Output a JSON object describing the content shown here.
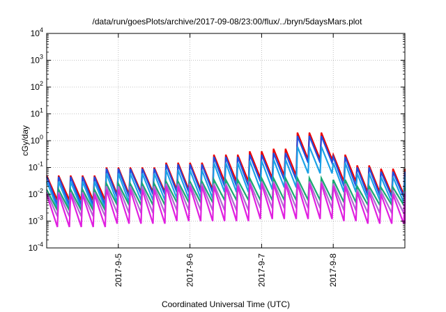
{
  "chart_data": {
    "type": "line",
    "title": "/data/run/goesPlots/archive/2017-09-08/23:00/flux/../bryn/5daysMars.plot",
    "xlabel": "Coordinated Universal Time (UTC)",
    "ylabel": "cGy/day",
    "x_range": [
      "2017-09-04T00:00",
      "2017-09-09T00:00"
    ],
    "x_ticks": [
      "2017-9-5",
      "2017-9-6",
      "2017-9-7",
      "2017-9-8"
    ],
    "y_scale": "log",
    "ylim": [
      0.0001,
      10000
    ],
    "y_ticks": [
      {
        "base": "10",
        "exp": "-4"
      },
      {
        "base": "10",
        "exp": "-3"
      },
      {
        "base": "10",
        "exp": "-2"
      },
      {
        "base": "10",
        "exp": "-1"
      },
      {
        "base": "10",
        "exp": "0"
      },
      {
        "base": "10",
        "exp": "1"
      },
      {
        "base": "10",
        "exp": "2"
      },
      {
        "base": "10",
        "exp": "3"
      },
      {
        "base": "10",
        "exp": "4"
      }
    ],
    "grid": true,
    "sawtooth_period_hours": 4,
    "series": [
      {
        "color": "#ee0000",
        "peaks": [
          0.05,
          0.05,
          0.1,
          0.1,
          0.15,
          0.15,
          0.3,
          0.4,
          0.5,
          2.0,
          0.3,
          0.12,
          0.09
        ],
        "troughs": [
          0.006,
          0.006,
          0.01,
          0.012,
          0.015,
          0.015,
          0.03,
          0.04,
          0.05,
          0.2,
          0.03,
          0.012,
          0.01
        ]
      },
      {
        "color": "#1f4fe0",
        "peaks": [
          0.045,
          0.045,
          0.09,
          0.09,
          0.13,
          0.13,
          0.25,
          0.3,
          0.35,
          1.5,
          0.25,
          0.1,
          0.07
        ],
        "troughs": [
          0.004,
          0.004,
          0.008,
          0.01,
          0.012,
          0.012,
          0.02,
          0.03,
          0.035,
          0.15,
          0.02,
          0.009,
          0.008
        ]
      },
      {
        "color": "#1ba1e6",
        "peaks": [
          0.03,
          0.03,
          0.06,
          0.06,
          0.08,
          0.08,
          0.15,
          0.18,
          0.2,
          0.6,
          0.15,
          0.06,
          0.045
        ],
        "troughs": [
          0.003,
          0.003,
          0.005,
          0.006,
          0.007,
          0.007,
          0.012,
          0.015,
          0.018,
          0.06,
          0.012,
          0.006,
          0.005
        ]
      },
      {
        "color": "#19a870",
        "peaks": [
          0.015,
          0.015,
          0.025,
          0.025,
          0.03,
          0.03,
          0.035,
          0.04,
          0.04,
          0.04,
          0.035,
          0.02,
          0.018
        ],
        "troughs": [
          0.0025,
          0.0025,
          0.004,
          0.004,
          0.005,
          0.005,
          0.006,
          0.006,
          0.006,
          0.006,
          0.005,
          0.004,
          0.004
        ]
      },
      {
        "color": "#b06ad0",
        "peaks": [
          0.012,
          0.012,
          0.02,
          0.02,
          0.025,
          0.025,
          0.025,
          0.03,
          0.03,
          0.03,
          0.025,
          0.015,
          0.013
        ],
        "troughs": [
          0.0015,
          0.0015,
          0.002,
          0.002,
          0.0025,
          0.0025,
          0.0025,
          0.003,
          0.003,
          0.003,
          0.0025,
          0.002,
          0.002
        ]
      },
      {
        "color": "#e020e0",
        "peaks": [
          0.01,
          0.01,
          0.015,
          0.015,
          0.02,
          0.02,
          0.02,
          0.025,
          0.025,
          0.025,
          0.02,
          0.012,
          0.01
        ],
        "troughs": [
          0.0006,
          0.0006,
          0.0008,
          0.0008,
          0.001,
          0.001,
          0.001,
          0.0012,
          0.0012,
          0.0012,
          0.001,
          0.0008,
          0.0008
        ]
      }
    ]
  }
}
